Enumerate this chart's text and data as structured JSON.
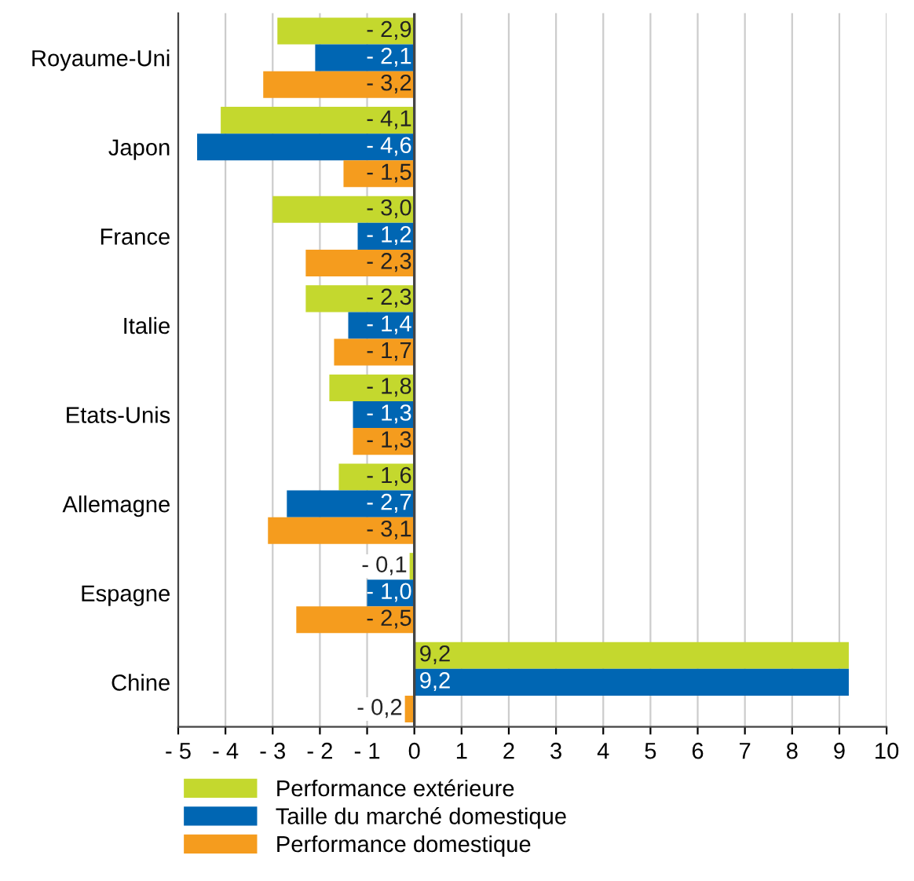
{
  "chart_data": {
    "type": "bar",
    "orientation": "horizontal",
    "categories": [
      "Royaume-Uni",
      "Japon",
      "France",
      "Italie",
      "Etats-Unis",
      "Allemagne",
      "Espagne",
      "Chine"
    ],
    "series": [
      {
        "name": "Performance extérieure",
        "color": "#c4d82e",
        "values": [
          -2.9,
          -4.1,
          -3.0,
          -2.3,
          -1.8,
          -1.6,
          -0.1,
          9.2
        ],
        "value_labels": [
          "- 2,9",
          "- 4,1",
          "- 3,0",
          "- 2,3",
          "- 1,8",
          "- 1,6",
          "- 0,1",
          "9,2"
        ]
      },
      {
        "name": "Taille du marché domestique",
        "color": "#0066b3",
        "values": [
          -2.1,
          -4.6,
          -1.2,
          -1.4,
          -1.3,
          -2.7,
          -1.0,
          9.2
        ],
        "value_labels": [
          "- 2,1",
          "- 4,6",
          "- 1,2",
          "- 1,4",
          "- 1,3",
          "- 2,7",
          "- 1,0",
          "9,2"
        ]
      },
      {
        "name": "Performance domestique",
        "color": "#f59c1e",
        "values": [
          -3.2,
          -1.5,
          -2.3,
          -1.7,
          -1.3,
          -3.1,
          -2.5,
          -0.2
        ],
        "value_labels": [
          "- 3,2",
          "- 1,5",
          "- 2,3",
          "- 1,7",
          "- 1,3",
          "- 3,1",
          "- 2,5",
          "- 0,2"
        ]
      }
    ],
    "xlim": [
      -5,
      10
    ],
    "xticks": [
      {
        "value": -5,
        "label": "- 5"
      },
      {
        "value": -4,
        "label": "- 4"
      },
      {
        "value": -3,
        "label": "- 3"
      },
      {
        "value": -2,
        "label": "- 2"
      },
      {
        "value": -1,
        "label": "- 1"
      },
      0,
      1,
      2,
      3,
      4,
      5,
      6,
      7,
      8,
      9,
      10
    ],
    "ref_lines": [
      {
        "axis": "x",
        "value": 0,
        "color": "#444444"
      }
    ],
    "grid": "x",
    "legend": "bottom"
  }
}
